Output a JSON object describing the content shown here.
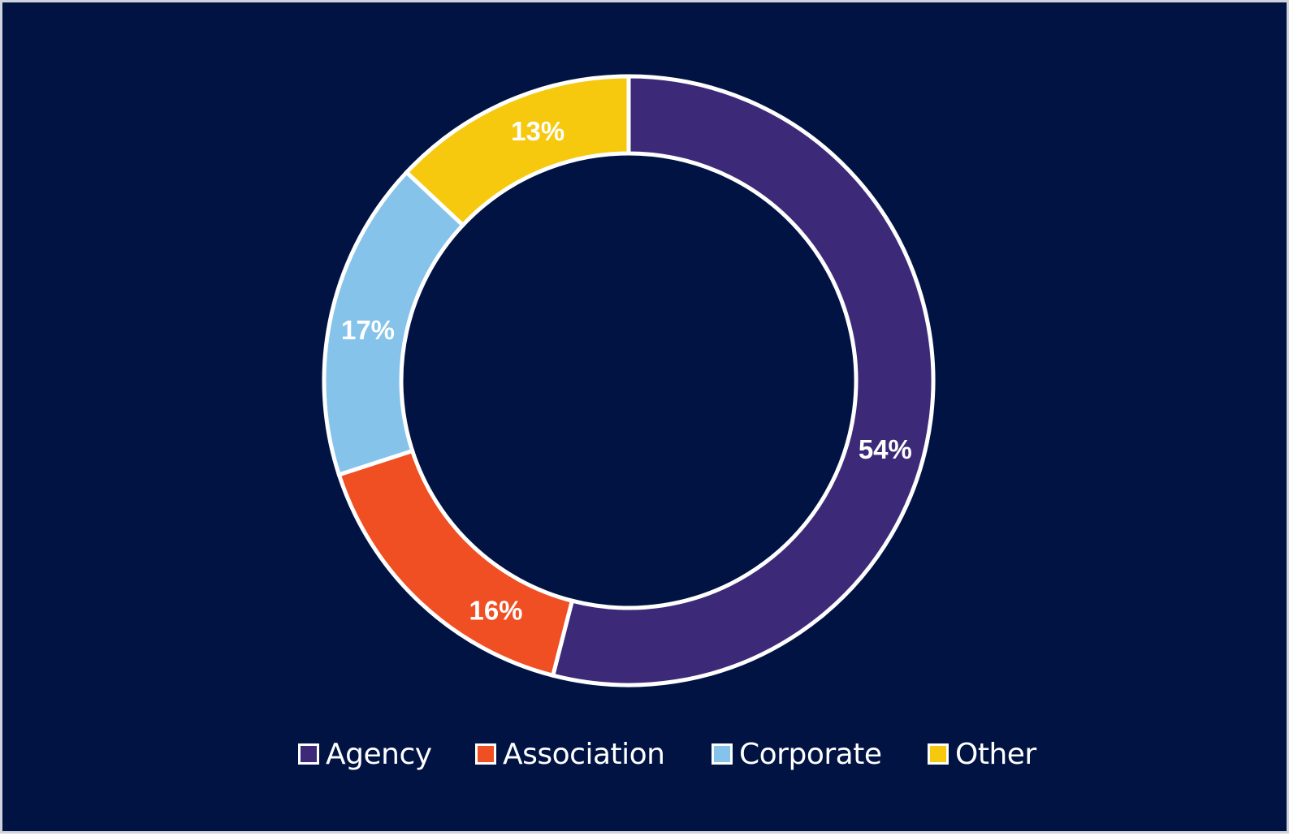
{
  "chart_data": {
    "type": "pie",
    "variant": "donut",
    "title": "",
    "categories": [
      "Agency",
      "Association",
      "Corporate",
      "Other"
    ],
    "values": [
      54,
      16,
      17,
      13
    ],
    "value_labels": [
      "54%",
      "16%",
      "17%",
      "13%"
    ],
    "colors": [
      "#3c2a78",
      "#f04e23",
      "#85c3eb",
      "#f6c90e"
    ],
    "start_angle": "12 o'clock",
    "direction": "clockwise",
    "legend": "bottom"
  },
  "colors": {
    "background": "#001343",
    "slice_border": "#ffffff"
  }
}
